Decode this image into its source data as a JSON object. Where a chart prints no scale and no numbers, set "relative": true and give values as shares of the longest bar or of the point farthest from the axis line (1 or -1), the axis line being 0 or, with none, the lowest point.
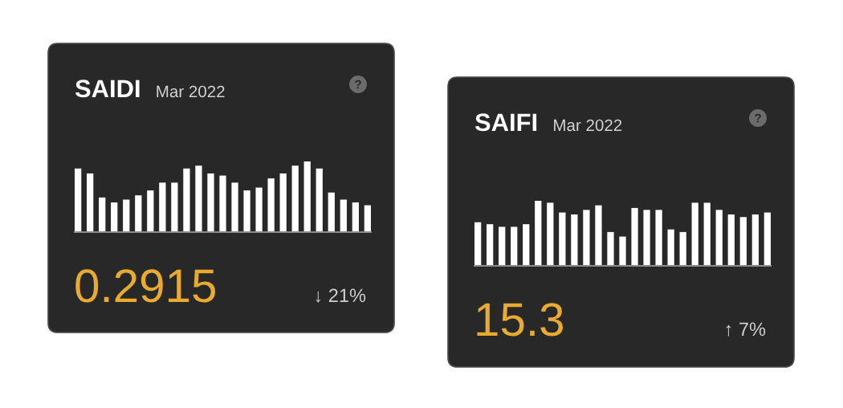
{
  "chart_data": [
    {
      "type": "bar",
      "title": "SAIDI",
      "subtitle": "Mar 2022",
      "categories": [
        null,
        null,
        null,
        null,
        null,
        null,
        null,
        null,
        null,
        null,
        null,
        null,
        null,
        null,
        null,
        null,
        null,
        null,
        null,
        null,
        null,
        null,
        null,
        null,
        null
      ],
      "values": [
        0.9,
        0.83,
        0.49,
        0.42,
        0.46,
        0.52,
        0.59,
        0.7,
        0.7,
        0.9,
        0.94,
        0.83,
        0.8,
        0.7,
        0.59,
        0.63,
        0.76,
        0.83,
        0.94,
        1.0,
        0.9,
        0.56,
        0.46,
        0.42,
        0.38
      ],
      "color": "#ffffff",
      "relative": true,
      "annotations": [
        "0.2915",
        "↓ 21%"
      ]
    },
    {
      "type": "bar",
      "title": "SAIFI",
      "subtitle": "Mar 2022",
      "categories": [
        null,
        null,
        null,
        null,
        null,
        null,
        null,
        null,
        null,
        null,
        null,
        null,
        null,
        null,
        null,
        null,
        null,
        null,
        null,
        null,
        null,
        null,
        null,
        null,
        null
      ],
      "values": [
        0.67,
        0.64,
        0.6,
        0.6,
        0.64,
        1.0,
        0.97,
        0.82,
        0.79,
        0.86,
        0.93,
        0.52,
        0.45,
        0.89,
        0.86,
        0.86,
        0.56,
        0.52,
        0.97,
        0.97,
        0.86,
        0.79,
        0.75,
        0.79,
        0.82
      ],
      "color": "#ffffff",
      "relative": true,
      "annotations": [
        "15.3",
        "↑ 7%"
      ]
    }
  ]
}
